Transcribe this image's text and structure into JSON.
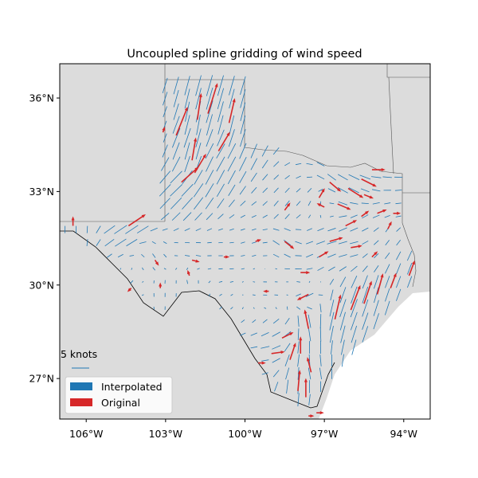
{
  "title": "Uncoupled spline gridding of wind speed",
  "colors": {
    "interpolated": "#1f77b4",
    "original": "#d62728",
    "land": "#dcdcdc",
    "ocean": "#ffffff",
    "border": "#555555"
  },
  "axes": {
    "xlim": [
      -107.0,
      -93.0
    ],
    "ylim": [
      25.7,
      37.1
    ],
    "xticks": [
      {
        "value": -106,
        "label": "106°W"
      },
      {
        "value": -103,
        "label": "103°W"
      },
      {
        "value": -100,
        "label": "100°W"
      },
      {
        "value": -97,
        "label": "97°W"
      },
      {
        "value": -94,
        "label": "94°W"
      }
    ],
    "yticks": [
      {
        "value": 36,
        "label": "36°N"
      },
      {
        "value": 33,
        "label": "33°N"
      },
      {
        "value": 30,
        "label": "30°N"
      },
      {
        "value": 27,
        "label": "27°N"
      }
    ]
  },
  "quiver_key": {
    "label": "5 knots"
  },
  "legend": {
    "placement": "lower-left",
    "items": [
      {
        "label": "Interpolated",
        "color": "#1f77b4"
      },
      {
        "label": "Original",
        "color": "#d62728"
      }
    ]
  },
  "chart_data": {
    "type": "quiver-map",
    "title": "Uncoupled spline gridding of wind speed",
    "xlim": [
      -107.0,
      -93.0
    ],
    "ylim": [
      25.7,
      37.1
    ],
    "series": [
      {
        "name": "Original",
        "color": "#d62728",
        "vectors": [
          {
            "lon": -102.6,
            "lat": 34.8,
            "u": 0.6,
            "v": 1.5
          },
          {
            "lon": -101.8,
            "lat": 35.3,
            "u": 0.2,
            "v": 1.4
          },
          {
            "lon": -101.4,
            "lat": 35.5,
            "u": 0.5,
            "v": 1.6
          },
          {
            "lon": -100.6,
            "lat": 35.2,
            "u": 0.3,
            "v": 1.3
          },
          {
            "lon": -101.0,
            "lat": 34.3,
            "u": 0.6,
            "v": 1.0
          },
          {
            "lon": -102.0,
            "lat": 34.0,
            "u": 0.2,
            "v": 1.2
          },
          {
            "lon": -102.4,
            "lat": 33.3,
            "u": 0.9,
            "v": 0.8
          },
          {
            "lon": -101.9,
            "lat": 33.6,
            "u": 0.6,
            "v": 1.0
          },
          {
            "lon": -103.1,
            "lat": 34.9,
            "u": 0.1,
            "v": 0.3
          },
          {
            "lon": -104.4,
            "lat": 31.9,
            "u": 0.9,
            "v": 0.6
          },
          {
            "lon": -106.5,
            "lat": 31.9,
            "u": 0.0,
            "v": 0.5
          },
          {
            "lon": -103.4,
            "lat": 30.8,
            "u": 0.2,
            "v": -0.3
          },
          {
            "lon": -102.0,
            "lat": 30.8,
            "u": 0.4,
            "v": -0.1
          },
          {
            "lon": -102.1,
            "lat": 30.3,
            "u": -0.1,
            "v": 0.3
          },
          {
            "lon": -103.2,
            "lat": 29.9,
            "u": 0.0,
            "v": 0.3
          },
          {
            "lon": -104.3,
            "lat": 29.9,
            "u": -0.2,
            "v": -0.2
          },
          {
            "lon": -98.5,
            "lat": 32.4,
            "u": 0.3,
            "v": 0.4
          },
          {
            "lon": -98.5,
            "lat": 31.4,
            "u": 0.5,
            "v": -0.4
          },
          {
            "lon": -99.6,
            "lat": 31.4,
            "u": 0.3,
            "v": 0.1
          },
          {
            "lon": -100.8,
            "lat": 30.9,
            "u": 0.3,
            "v": 0.0
          },
          {
            "lon": -99.1,
            "lat": 29.8,
            "u": -0.3,
            "v": 0.0
          },
          {
            "lon": -97.6,
            "lat": 29.7,
            "u": -0.6,
            "v": -0.3
          },
          {
            "lon": -97.2,
            "lat": 30.9,
            "u": 0.5,
            "v": 0.3
          },
          {
            "lon": -97.9,
            "lat": 30.4,
            "u": 0.5,
            "v": 0.0
          },
          {
            "lon": -96.8,
            "lat": 31.4,
            "u": 0.7,
            "v": 0.2
          },
          {
            "lon": -96.2,
            "lat": 31.9,
            "u": 0.6,
            "v": 0.3
          },
          {
            "lon": -95.6,
            "lat": 32.2,
            "u": 0.4,
            "v": 0.3
          },
          {
            "lon": -95.0,
            "lat": 32.3,
            "u": 0.5,
            "v": 0.2
          },
          {
            "lon": -94.6,
            "lat": 31.8,
            "u": 0.2,
            "v": 0.4
          },
          {
            "lon": -95.2,
            "lat": 30.9,
            "u": 0.3,
            "v": 0.3
          },
          {
            "lon": -96.5,
            "lat": 32.6,
            "u": 0.7,
            "v": -0.3
          },
          {
            "lon": -96.1,
            "lat": 33.1,
            "u": 0.8,
            "v": -0.5
          },
          {
            "lon": -95.6,
            "lat": 33.4,
            "u": 0.8,
            "v": -0.4
          },
          {
            "lon": -96.8,
            "lat": 33.3,
            "u": 0.6,
            "v": -0.5
          },
          {
            "lon": -97.0,
            "lat": 32.5,
            "u": -0.4,
            "v": 0.2
          },
          {
            "lon": -97.2,
            "lat": 32.8,
            "u": 0.3,
            "v": 0.5
          },
          {
            "lon": -95.2,
            "lat": 33.7,
            "u": 0.7,
            "v": 0.0
          },
          {
            "lon": -95.5,
            "lat": 32.9,
            "u": 0.5,
            "v": -0.2
          },
          {
            "lon": -94.4,
            "lat": 32.3,
            "u": 0.4,
            "v": 0.0
          },
          {
            "lon": -96.0,
            "lat": 31.2,
            "u": 0.6,
            "v": 0.1
          },
          {
            "lon": -97.6,
            "lat": 28.6,
            "u": -0.2,
            "v": 1.0
          },
          {
            "lon": -96.6,
            "lat": 28.9,
            "u": 0.3,
            "v": 1.3
          },
          {
            "lon": -96.0,
            "lat": 29.2,
            "u": 0.5,
            "v": 1.3
          },
          {
            "lon": -95.5,
            "lat": 29.4,
            "u": 0.4,
            "v": 1.2
          },
          {
            "lon": -95.0,
            "lat": 29.7,
            "u": 0.3,
            "v": 1.1
          },
          {
            "lon": -94.5,
            "lat": 29.9,
            "u": 0.3,
            "v": 0.8
          },
          {
            "lon": -93.8,
            "lat": 30.3,
            "u": 0.3,
            "v": 0.8
          },
          {
            "lon": -97.9,
            "lat": 27.8,
            "u": 0.0,
            "v": 0.9
          },
          {
            "lon": -98.3,
            "lat": 27.6,
            "u": 0.3,
            "v": 0.9
          },
          {
            "lon": -97.5,
            "lat": 27.2,
            "u": -0.2,
            "v": 0.8
          },
          {
            "lon": -98.0,
            "lat": 26.6,
            "u": 0.1,
            "v": 1.1
          },
          {
            "lon": -97.7,
            "lat": 26.4,
            "u": 0.0,
            "v": 1.0
          },
          {
            "lon": -99.0,
            "lat": 27.8,
            "u": 0.7,
            "v": 0.1
          },
          {
            "lon": -99.5,
            "lat": 27.5,
            "u": 0.4,
            "v": 0.0
          },
          {
            "lon": -98.6,
            "lat": 28.3,
            "u": 0.6,
            "v": 0.3
          },
          {
            "lon": -97.3,
            "lat": 25.9,
            "u": 0.4,
            "v": 0.0
          },
          {
            "lon": -97.6,
            "lat": 25.8,
            "u": 0.3,
            "v": 0.0
          }
        ]
      },
      {
        "name": "Interpolated",
        "color": "#1f77b4",
        "grid": {
          "lon_start": -106.8,
          "lon_step": 0.42,
          "lat_start": 25.9,
          "lat_step": 0.42
        }
      }
    ]
  }
}
